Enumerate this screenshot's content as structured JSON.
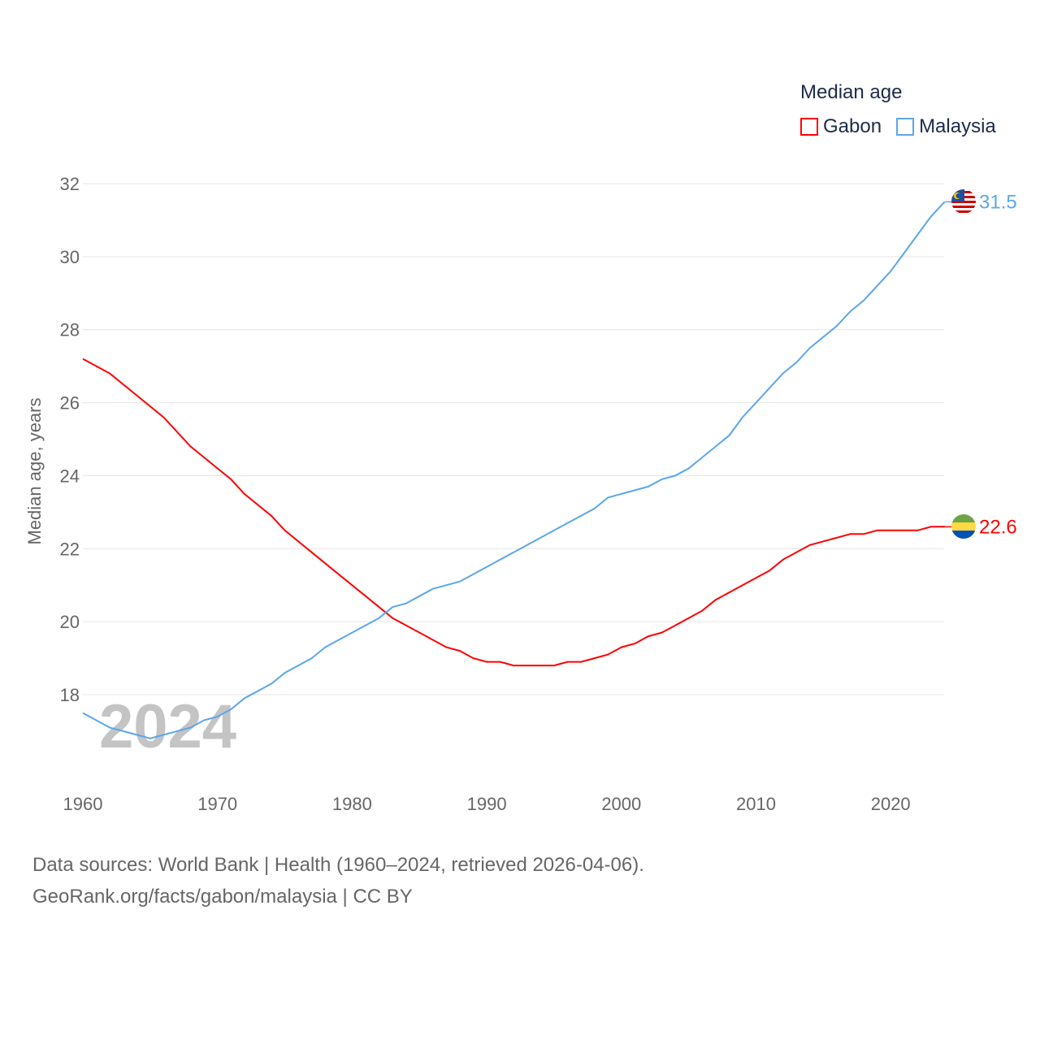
{
  "legend": {
    "title": "Median age",
    "items": [
      {
        "name": "Gabon",
        "color": "#ff0000"
      },
      {
        "name": "Malaysia",
        "color": "#5ba6ec"
      }
    ]
  },
  "source": {
    "line1": "Data sources: World Bank | Health (1960–2024, retrieved 2026-04-06).",
    "line2": "GeoRank.org/facts/gabon/malaysia | CC BY"
  },
  "chart_data": {
    "type": "line",
    "title": "Median age",
    "xlabel": "",
    "ylabel": "Median age, years",
    "xlim": [
      1960,
      2024
    ],
    "ylim": [
      16.2,
      32
    ],
    "xticks": [
      1960,
      1970,
      1980,
      1990,
      2000,
      2010,
      2020
    ],
    "yticks": [
      18,
      20,
      22,
      24,
      26,
      28,
      30,
      32
    ],
    "grid": true,
    "legend_position": "top-right",
    "watermark_year": "2024",
    "series": [
      {
        "name": "Gabon",
        "color": "#ff0000",
        "end_label": "22.6",
        "x": [
          1960,
          1962,
          1964,
          1966,
          1968,
          1970,
          1971,
          1972,
          1974,
          1975,
          1977,
          1979,
          1981,
          1983,
          1985,
          1987,
          1988,
          1989,
          1990,
          1991,
          1992,
          1993,
          1994,
          1995,
          1996,
          1997,
          1998,
          1999,
          2000,
          2001,
          2002,
          2003,
          2004,
          2005,
          2006,
          2007,
          2008,
          2009,
          2010,
          2011,
          2012,
          2013,
          2014,
          2015,
          2016,
          2017,
          2018,
          2019,
          2020,
          2021,
          2022,
          2023,
          2024
        ],
        "y": [
          27.2,
          26.8,
          26.2,
          25.6,
          24.8,
          24.2,
          23.9,
          23.5,
          22.9,
          22.5,
          21.9,
          21.3,
          20.7,
          20.1,
          19.7,
          19.3,
          19.2,
          19.0,
          18.9,
          18.9,
          18.8,
          18.8,
          18.8,
          18.8,
          18.9,
          18.9,
          19.0,
          19.1,
          19.3,
          19.4,
          19.6,
          19.7,
          19.9,
          20.1,
          20.3,
          20.6,
          20.8,
          21.0,
          21.2,
          21.4,
          21.7,
          21.9,
          22.1,
          22.2,
          22.3,
          22.4,
          22.4,
          22.5,
          22.5,
          22.5,
          22.5,
          22.6,
          22.6
        ]
      },
      {
        "name": "Malaysia",
        "color": "#5ba6ec",
        "end_label": "31.5",
        "x": [
          1960,
          1962,
          1964,
          1965,
          1966,
          1968,
          1969,
          1970,
          1971,
          1972,
          1974,
          1975,
          1977,
          1978,
          1980,
          1982,
          1983,
          1984,
          1986,
          1988,
          1990,
          1992,
          1994,
          1996,
          1998,
          1999,
          2000,
          2002,
          2003,
          2004,
          2005,
          2006,
          2007,
          2008,
          2009,
          2010,
          2011,
          2012,
          2013,
          2014,
          2015,
          2016,
          2017,
          2018,
          2019,
          2020,
          2021,
          2022,
          2023,
          2024
        ],
        "y": [
          17.5,
          17.1,
          16.9,
          16.8,
          16.9,
          17.1,
          17.3,
          17.4,
          17.6,
          17.9,
          18.3,
          18.6,
          19.0,
          19.3,
          19.7,
          20.1,
          20.4,
          20.5,
          20.9,
          21.1,
          21.5,
          21.9,
          22.3,
          22.7,
          23.1,
          23.4,
          23.5,
          23.7,
          23.9,
          24.0,
          24.2,
          24.5,
          24.8,
          25.1,
          25.6,
          26.0,
          26.4,
          26.8,
          27.1,
          27.5,
          27.8,
          28.1,
          28.5,
          28.8,
          29.2,
          29.6,
          30.1,
          30.6,
          31.1,
          31.5
        ]
      }
    ]
  }
}
